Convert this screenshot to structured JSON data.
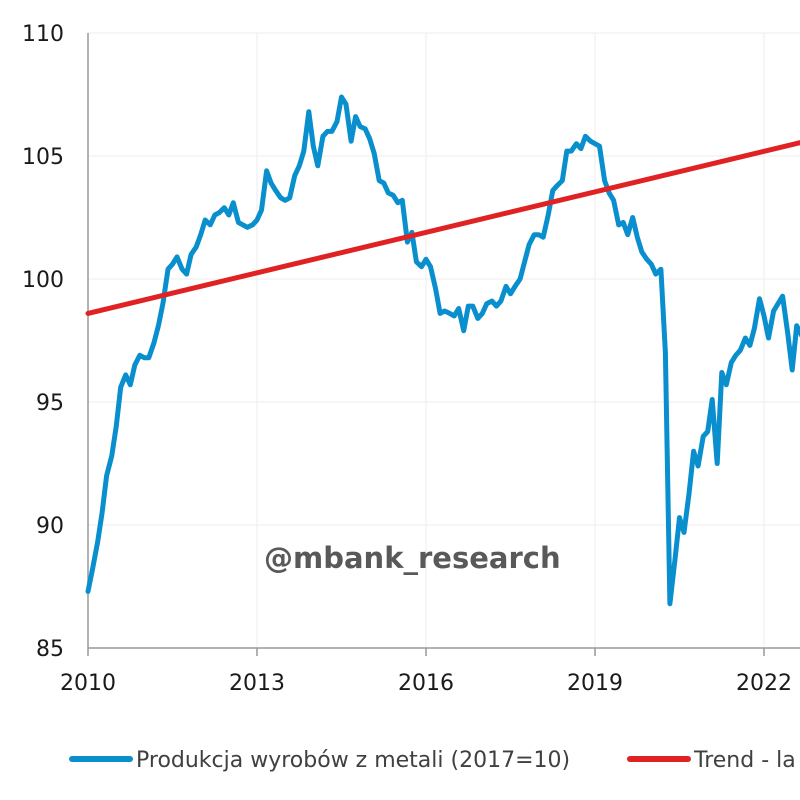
{
  "colors": {
    "series": "#0a8fce",
    "trend": "#e02222",
    "grid": "#eeeeee",
    "axis": "#999999",
    "watermark": "#595959"
  },
  "watermark": "@mbank_research",
  "chart_data": {
    "type": "line",
    "title": "",
    "xlabel": "",
    "ylabel": "",
    "xlim": [
      2010,
      2022.75
    ],
    "ylim": [
      85,
      110
    ],
    "grid": true,
    "legend_position": "bottom",
    "x_ticks": [
      "2010",
      "2013",
      "2016",
      "2019",
      "2022"
    ],
    "y_ticks": [
      "110",
      "105",
      "100",
      "95",
      "90",
      "85"
    ],
    "series": [
      {
        "name": "Produkcja wyrobów z metali (2017=10)",
        "color": "#0a8fce",
        "x": [
          2010.0,
          2010.08,
          2010.17,
          2010.25,
          2010.33,
          2010.42,
          2010.5,
          2010.58,
          2010.67,
          2010.75,
          2010.83,
          2010.92,
          2011.0,
          2011.08,
          2011.17,
          2011.25,
          2011.33,
          2011.42,
          2011.5,
          2011.58,
          2011.67,
          2011.75,
          2011.83,
          2011.92,
          2012.0,
          2012.08,
          2012.17,
          2012.25,
          2012.33,
          2012.42,
          2012.5,
          2012.58,
          2012.67,
          2012.75,
          2012.83,
          2012.92,
          2013.0,
          2013.08,
          2013.17,
          2013.25,
          2013.33,
          2013.42,
          2013.5,
          2013.58,
          2013.67,
          2013.75,
          2013.83,
          2013.92,
          2014.0,
          2014.08,
          2014.17,
          2014.25,
          2014.33,
          2014.42,
          2014.5,
          2014.58,
          2014.67,
          2014.75,
          2014.83,
          2014.92,
          2015.0,
          2015.08,
          2015.17,
          2015.25,
          2015.33,
          2015.42,
          2015.5,
          2015.58,
          2015.67,
          2015.75,
          2015.83,
          2015.92,
          2016.0,
          2016.08,
          2016.17,
          2016.25,
          2016.33,
          2016.42,
          2016.5,
          2016.58,
          2016.67,
          2016.75,
          2016.83,
          2016.92,
          2017.0,
          2017.08,
          2017.17,
          2017.25,
          2017.33,
          2017.42,
          2017.5,
          2017.58,
          2017.67,
          2017.75,
          2017.83,
          2017.92,
          2018.0,
          2018.08,
          2018.17,
          2018.25,
          2018.33,
          2018.42,
          2018.5,
          2018.58,
          2018.67,
          2018.75,
          2018.83,
          2018.92,
          2019.0,
          2019.08,
          2019.17,
          2019.25,
          2019.33,
          2019.42,
          2019.5,
          2019.58,
          2019.67,
          2019.75,
          2019.83,
          2019.92,
          2020.0,
          2020.08,
          2020.17,
          2020.25,
          2020.33,
          2020.42,
          2020.5,
          2020.58,
          2020.67,
          2020.75,
          2020.83,
          2020.92,
          2021.0,
          2021.08,
          2021.17,
          2021.25,
          2021.33,
          2021.42,
          2021.5,
          2021.58,
          2021.67,
          2021.75,
          2021.83,
          2021.92,
          2022.0,
          2022.08,
          2022.17,
          2022.25,
          2022.33,
          2022.42,
          2022.5,
          2022.58,
          2022.67,
          2022.75
        ],
        "values": [
          87.3,
          88.2,
          89.3,
          90.5,
          92.0,
          92.8,
          94.0,
          95.6,
          96.1,
          95.7,
          96.5,
          96.9,
          96.8,
          96.8,
          97.4,
          98.1,
          99.0,
          100.4,
          100.6,
          100.9,
          100.4,
          100.2,
          101.0,
          101.3,
          101.8,
          102.4,
          102.2,
          102.6,
          102.7,
          102.9,
          102.6,
          103.1,
          102.3,
          102.2,
          102.1,
          102.2,
          102.4,
          102.8,
          104.4,
          103.9,
          103.6,
          103.3,
          103.2,
          103.3,
          104.2,
          104.6,
          105.2,
          106.8,
          105.4,
          104.6,
          105.8,
          106.0,
          106.0,
          106.4,
          107.4,
          107.1,
          105.6,
          106.6,
          106.2,
          106.1,
          105.7,
          105.1,
          104.0,
          103.9,
          103.5,
          103.4,
          103.1,
          103.2,
          101.5,
          101.9,
          100.7,
          100.5,
          100.8,
          100.5,
          99.6,
          98.6,
          98.7,
          98.6,
          98.5,
          98.8,
          97.9,
          98.9,
          98.9,
          98.4,
          98.6,
          99.0,
          99.1,
          98.9,
          99.1,
          99.7,
          99.4,
          99.7,
          100.0,
          100.7,
          101.4,
          101.8,
          101.8,
          101.7,
          102.6,
          103.6,
          103.8,
          104.0,
          105.2,
          105.2,
          105.5,
          105.3,
          105.8,
          105.6,
          105.5,
          105.4,
          104.0,
          103.5,
          103.2,
          102.2,
          102.3,
          101.8,
          102.5,
          101.7,
          101.1,
          100.8,
          100.6,
          100.2,
          100.4,
          97.0,
          86.8,
          88.6,
          90.3,
          89.7,
          91.3,
          93.0,
          92.4,
          93.6,
          93.8,
          95.1,
          92.5,
          96.2,
          95.7,
          96.6,
          96.9,
          97.1,
          97.6,
          97.3,
          98.0,
          99.2,
          98.5,
          97.6,
          98.7,
          99.0,
          99.3,
          97.8,
          96.3,
          98.1,
          97.7,
          97.6
        ]
      },
      {
        "name": "Trend - la",
        "color": "#e02222",
        "x": [
          2010.0,
          2022.75
        ],
        "values": [
          98.6,
          105.6
        ]
      }
    ]
  }
}
